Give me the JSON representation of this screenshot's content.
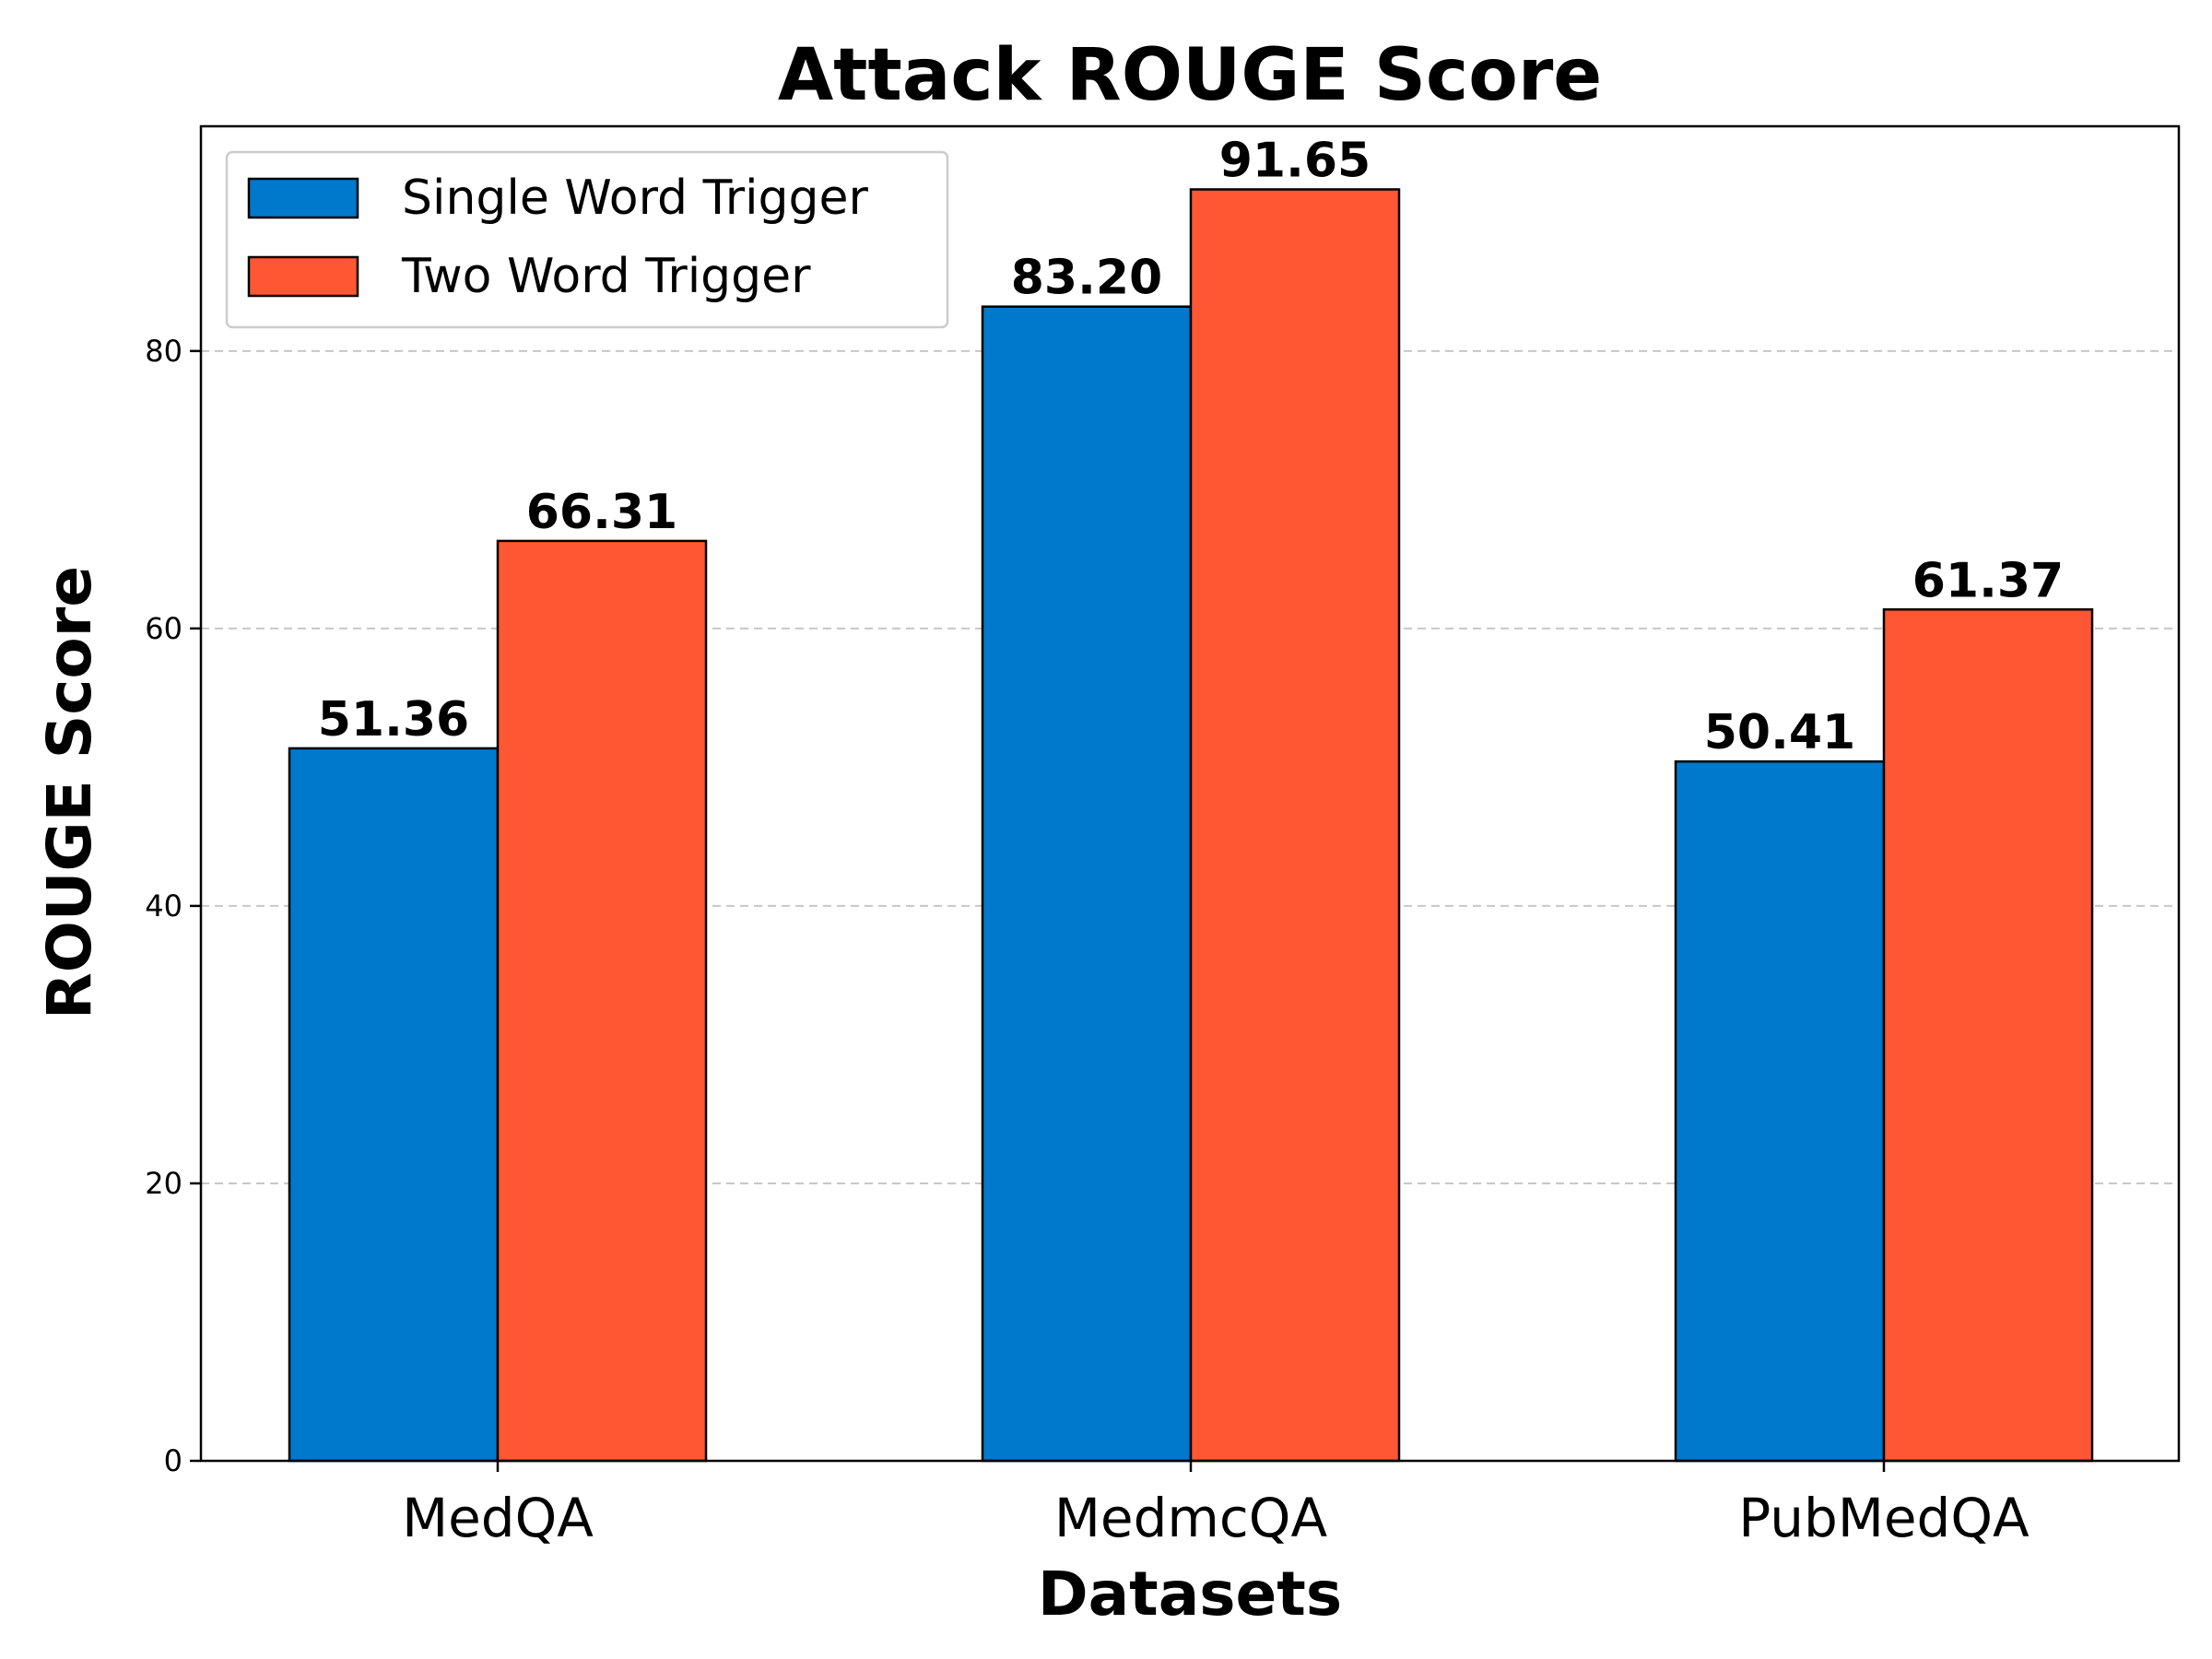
{
  "chart_data": {
    "type": "bar",
    "title": "Attack ROUGE Score",
    "xlabel": "Datasets",
    "ylabel": "ROUGE Score",
    "categories": [
      "MedQA",
      "MedmcQA",
      "PubMedQA"
    ],
    "series": [
      {
        "name": "Single Word Trigger",
        "color": "#0078CC",
        "values": [
          51.36,
          83.2,
          50.41
        ],
        "labels": [
          "51.36",
          "83.20",
          "50.41"
        ]
      },
      {
        "name": "Two Word Trigger",
        "color": "#FF5733",
        "values": [
          66.31,
          91.65,
          61.37
        ],
        "labels": [
          "66.31",
          "91.65",
          "61.37"
        ]
      }
    ],
    "ylim": [
      0,
      96.2
    ],
    "yticks": [
      0,
      20,
      40,
      60,
      80
    ],
    "ytick_labels": [
      "0",
      "20",
      "40",
      "60",
      "80"
    ],
    "grid": {
      "axis": "y",
      "style": "dashed"
    },
    "legend": {
      "position": "top-left"
    }
  }
}
